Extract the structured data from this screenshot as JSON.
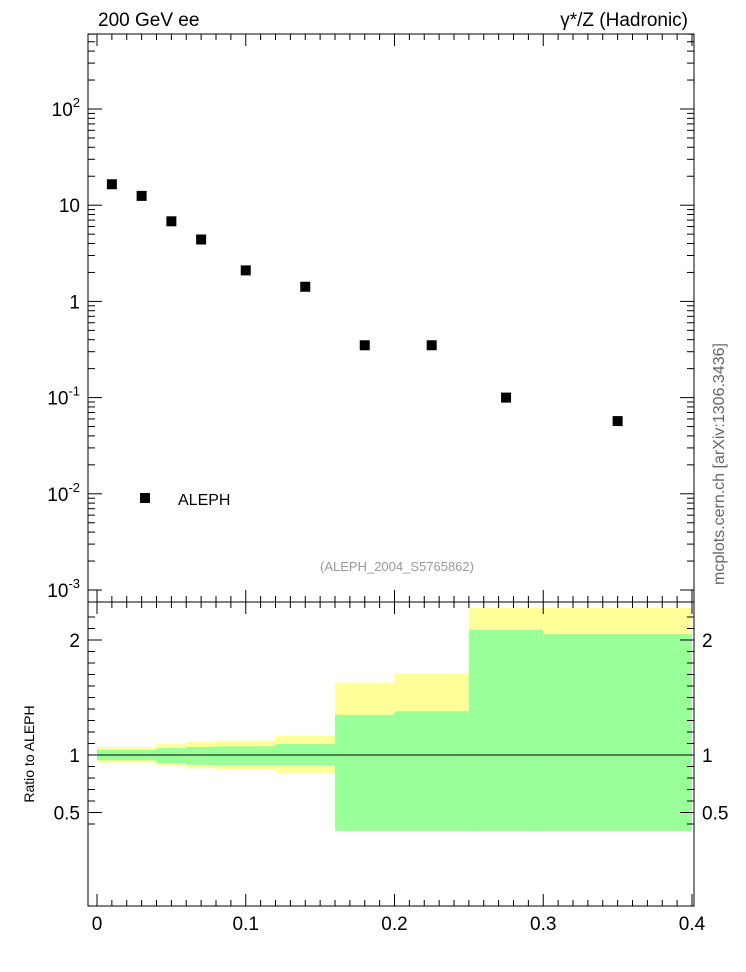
{
  "header": {
    "left": "200 GeV ee",
    "right": "γ*/Z (Hadronic)"
  },
  "side_label": "mcplots.cern.ch [arXiv:1306.3436]",
  "analysis_label": "(ALEPH_2004_S5765862)",
  "chart_data": [
    {
      "type": "scatter",
      "yscale": "log",
      "ylim": [
        0.001,
        1000
      ],
      "xlim": [
        0,
        0.4
      ],
      "y_tick_labels": [
        "10^-3",
        "10^-2",
        "10^-1",
        "1",
        "10",
        "10^2"
      ],
      "legend": {
        "entries": [
          "ALEPH"
        ],
        "placement": "bottom-left"
      },
      "series": [
        {
          "name": "ALEPH",
          "marker": "square",
          "color": "#000000",
          "x": [
            0.01,
            0.03,
            0.05,
            0.07,
            0.1,
            0.14,
            0.18,
            0.225,
            0.275,
            0.35
          ],
          "y": [
            16.5,
            12.5,
            6.8,
            4.4,
            2.1,
            1.42,
            0.35,
            0.35,
            0.1,
            0.057
          ]
        }
      ]
    },
    {
      "type": "area",
      "ylabel": "Ratio to ALEPH",
      "xlim": [
        0,
        0.4
      ],
      "ylim": [
        0.34,
        2.28
      ],
      "x_tick_labels": [
        "0",
        "0.1",
        "0.2",
        "0.3",
        "0.4"
      ],
      "y_tick_labels": [
        "0.5",
        "1",
        "2"
      ],
      "reference_line": 1,
      "bins": [
        {
          "x0": 0.0,
          "x1": 0.04,
          "green": [
            0.955,
            1.045
          ],
          "yellow": [
            0.935,
            1.07
          ]
        },
        {
          "x0": 0.04,
          "x1": 0.06,
          "green": [
            0.93,
            1.06
          ],
          "yellow": [
            0.905,
            1.095
          ]
        },
        {
          "x0": 0.06,
          "x1": 0.08,
          "green": [
            0.915,
            1.07
          ],
          "yellow": [
            0.885,
            1.115
          ]
        },
        {
          "x0": 0.08,
          "x1": 0.12,
          "green": [
            0.91,
            1.075
          ],
          "yellow": [
            0.875,
            1.125
          ]
        },
        {
          "x0": 0.12,
          "x1": 0.16,
          "green": [
            0.91,
            1.095
          ],
          "yellow": [
            0.845,
            1.165
          ]
        },
        {
          "x0": 0.16,
          "x1": 0.2,
          "green": [
            0.34,
            1.35
          ],
          "yellow": [
            0.34,
            1.63
          ]
        },
        {
          "x0": 0.2,
          "x1": 0.25,
          "green": [
            0.34,
            1.38
          ],
          "yellow": [
            0.34,
            1.71
          ]
        },
        {
          "x0": 0.25,
          "x1": 0.3,
          "green": [
            0.34,
            2.09
          ],
          "yellow": [
            0.34,
            2.28
          ]
        },
        {
          "x0": 0.3,
          "x1": 0.4,
          "green": [
            0.34,
            2.05
          ],
          "yellow": [
            0.34,
            2.28
          ]
        }
      ],
      "colors": {
        "green": "#99ff99",
        "yellow": "#ffff99"
      }
    }
  ]
}
